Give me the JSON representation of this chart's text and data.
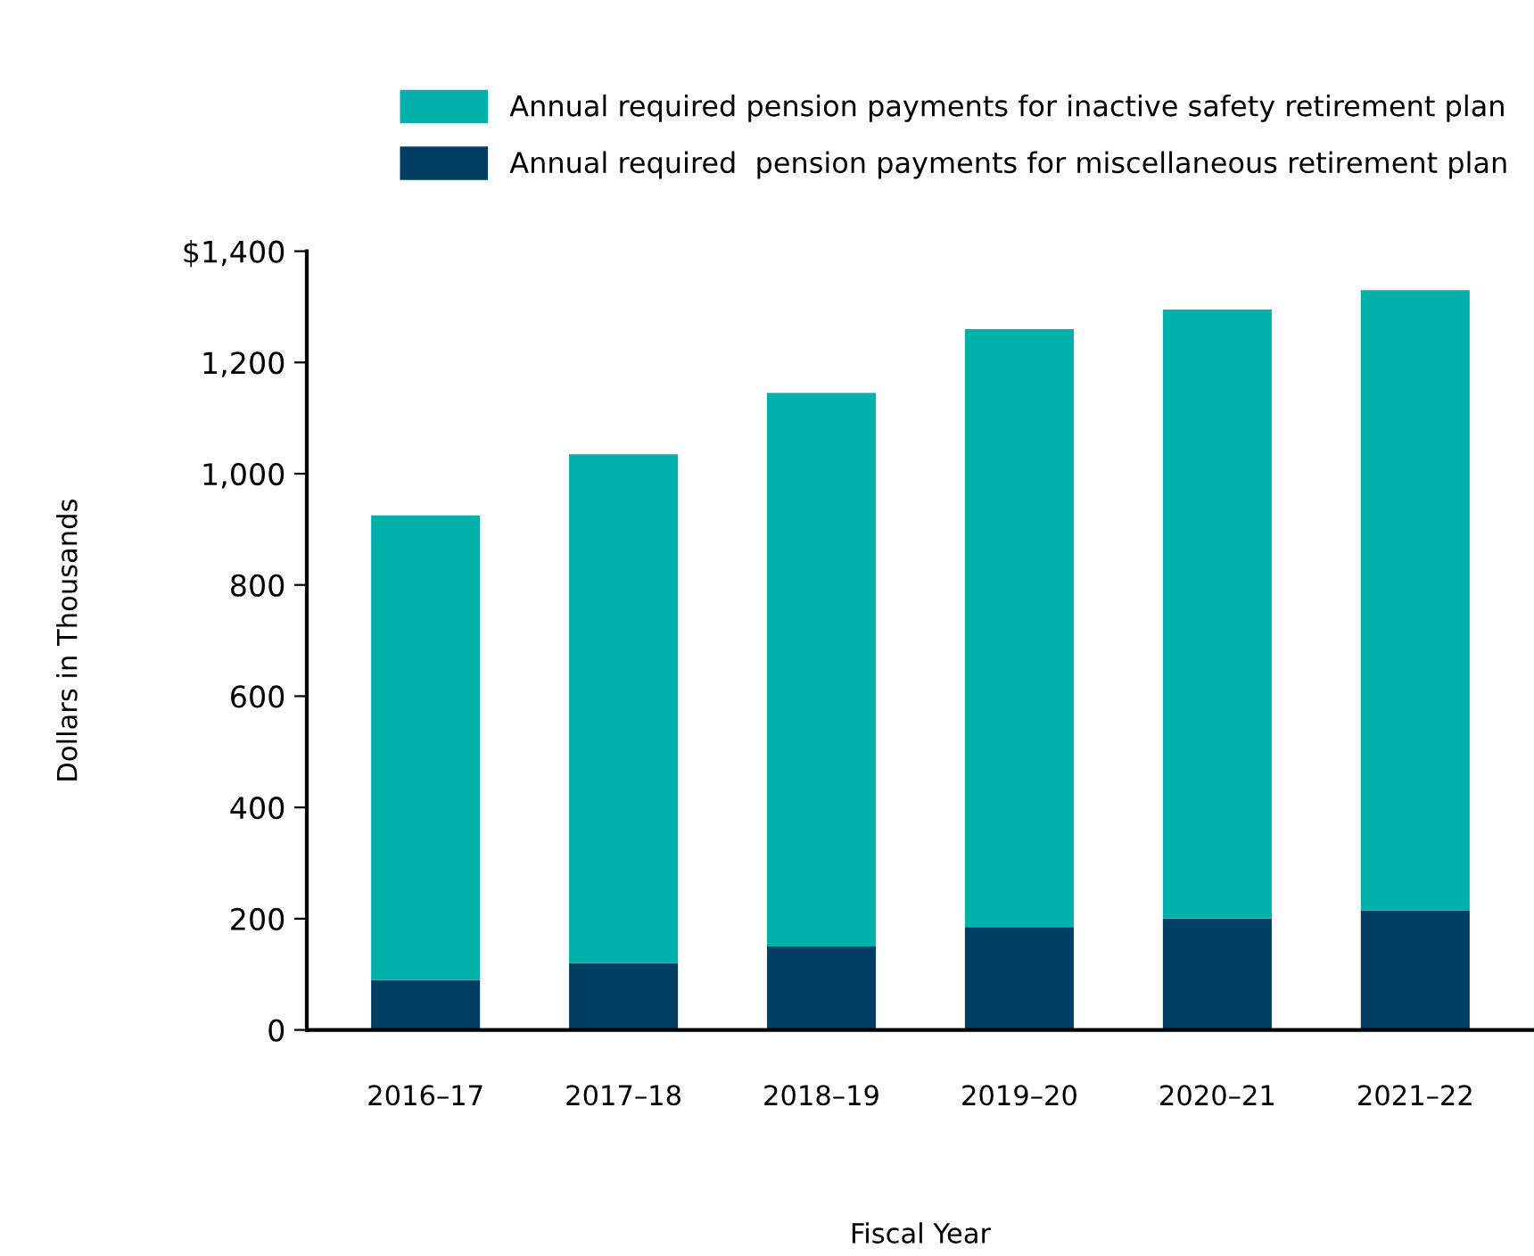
{
  "chart_data": {
    "type": "bar",
    "stacked": true,
    "xlabel": "Fiscal Year",
    "ylabel": "Dollars in Thousands",
    "categories": [
      "2016–17",
      "2017–18",
      "2018–19",
      "2019–20",
      "2020–21",
      "2021–22"
    ],
    "series": [
      {
        "name": "Annual required  pension payments for miscellaneous retirement plan",
        "color": "#003f63",
        "values": [
          90,
          120,
          150,
          185,
          200,
          215
        ]
      },
      {
        "name": "Annual required pension payments for inactive safety retirement plan",
        "color": "#00b0aa",
        "values": [
          835,
          915,
          995,
          1075,
          1095,
          1115
        ]
      }
    ],
    "ylim": [
      0,
      1400
    ],
    "yticks": [
      0,
      200,
      400,
      600,
      800,
      {
        "value": 1000,
        "label": "1,000"
      },
      {
        "value": 1200,
        "label": "1,200"
      },
      {
        "value": 1400,
        "label": "$1,400"
      }
    ],
    "grid": false,
    "legend": "top right"
  }
}
